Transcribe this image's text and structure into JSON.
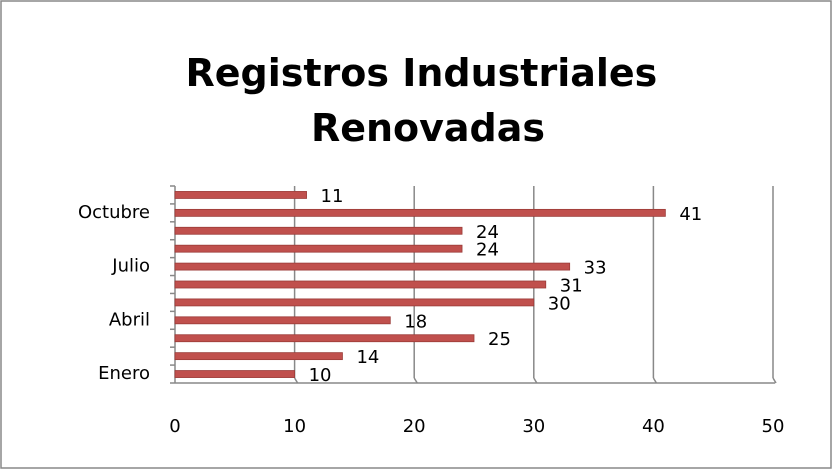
{
  "chart_data": {
    "type": "bar",
    "orientation": "horizontal",
    "title": "Registros Industriales Renovadas",
    "categories": [
      "Enero",
      null,
      null,
      "Abril",
      null,
      null,
      "Julio",
      null,
      null,
      "Octubre",
      null
    ],
    "values": [
      10,
      14,
      25,
      18,
      30,
      31,
      33,
      24,
      24,
      41,
      11
    ],
    "color": "#c0504d",
    "xlim": [
      0,
      50
    ],
    "xticks": [
      0,
      10,
      20,
      30,
      40,
      50
    ],
    "grid": true
  }
}
